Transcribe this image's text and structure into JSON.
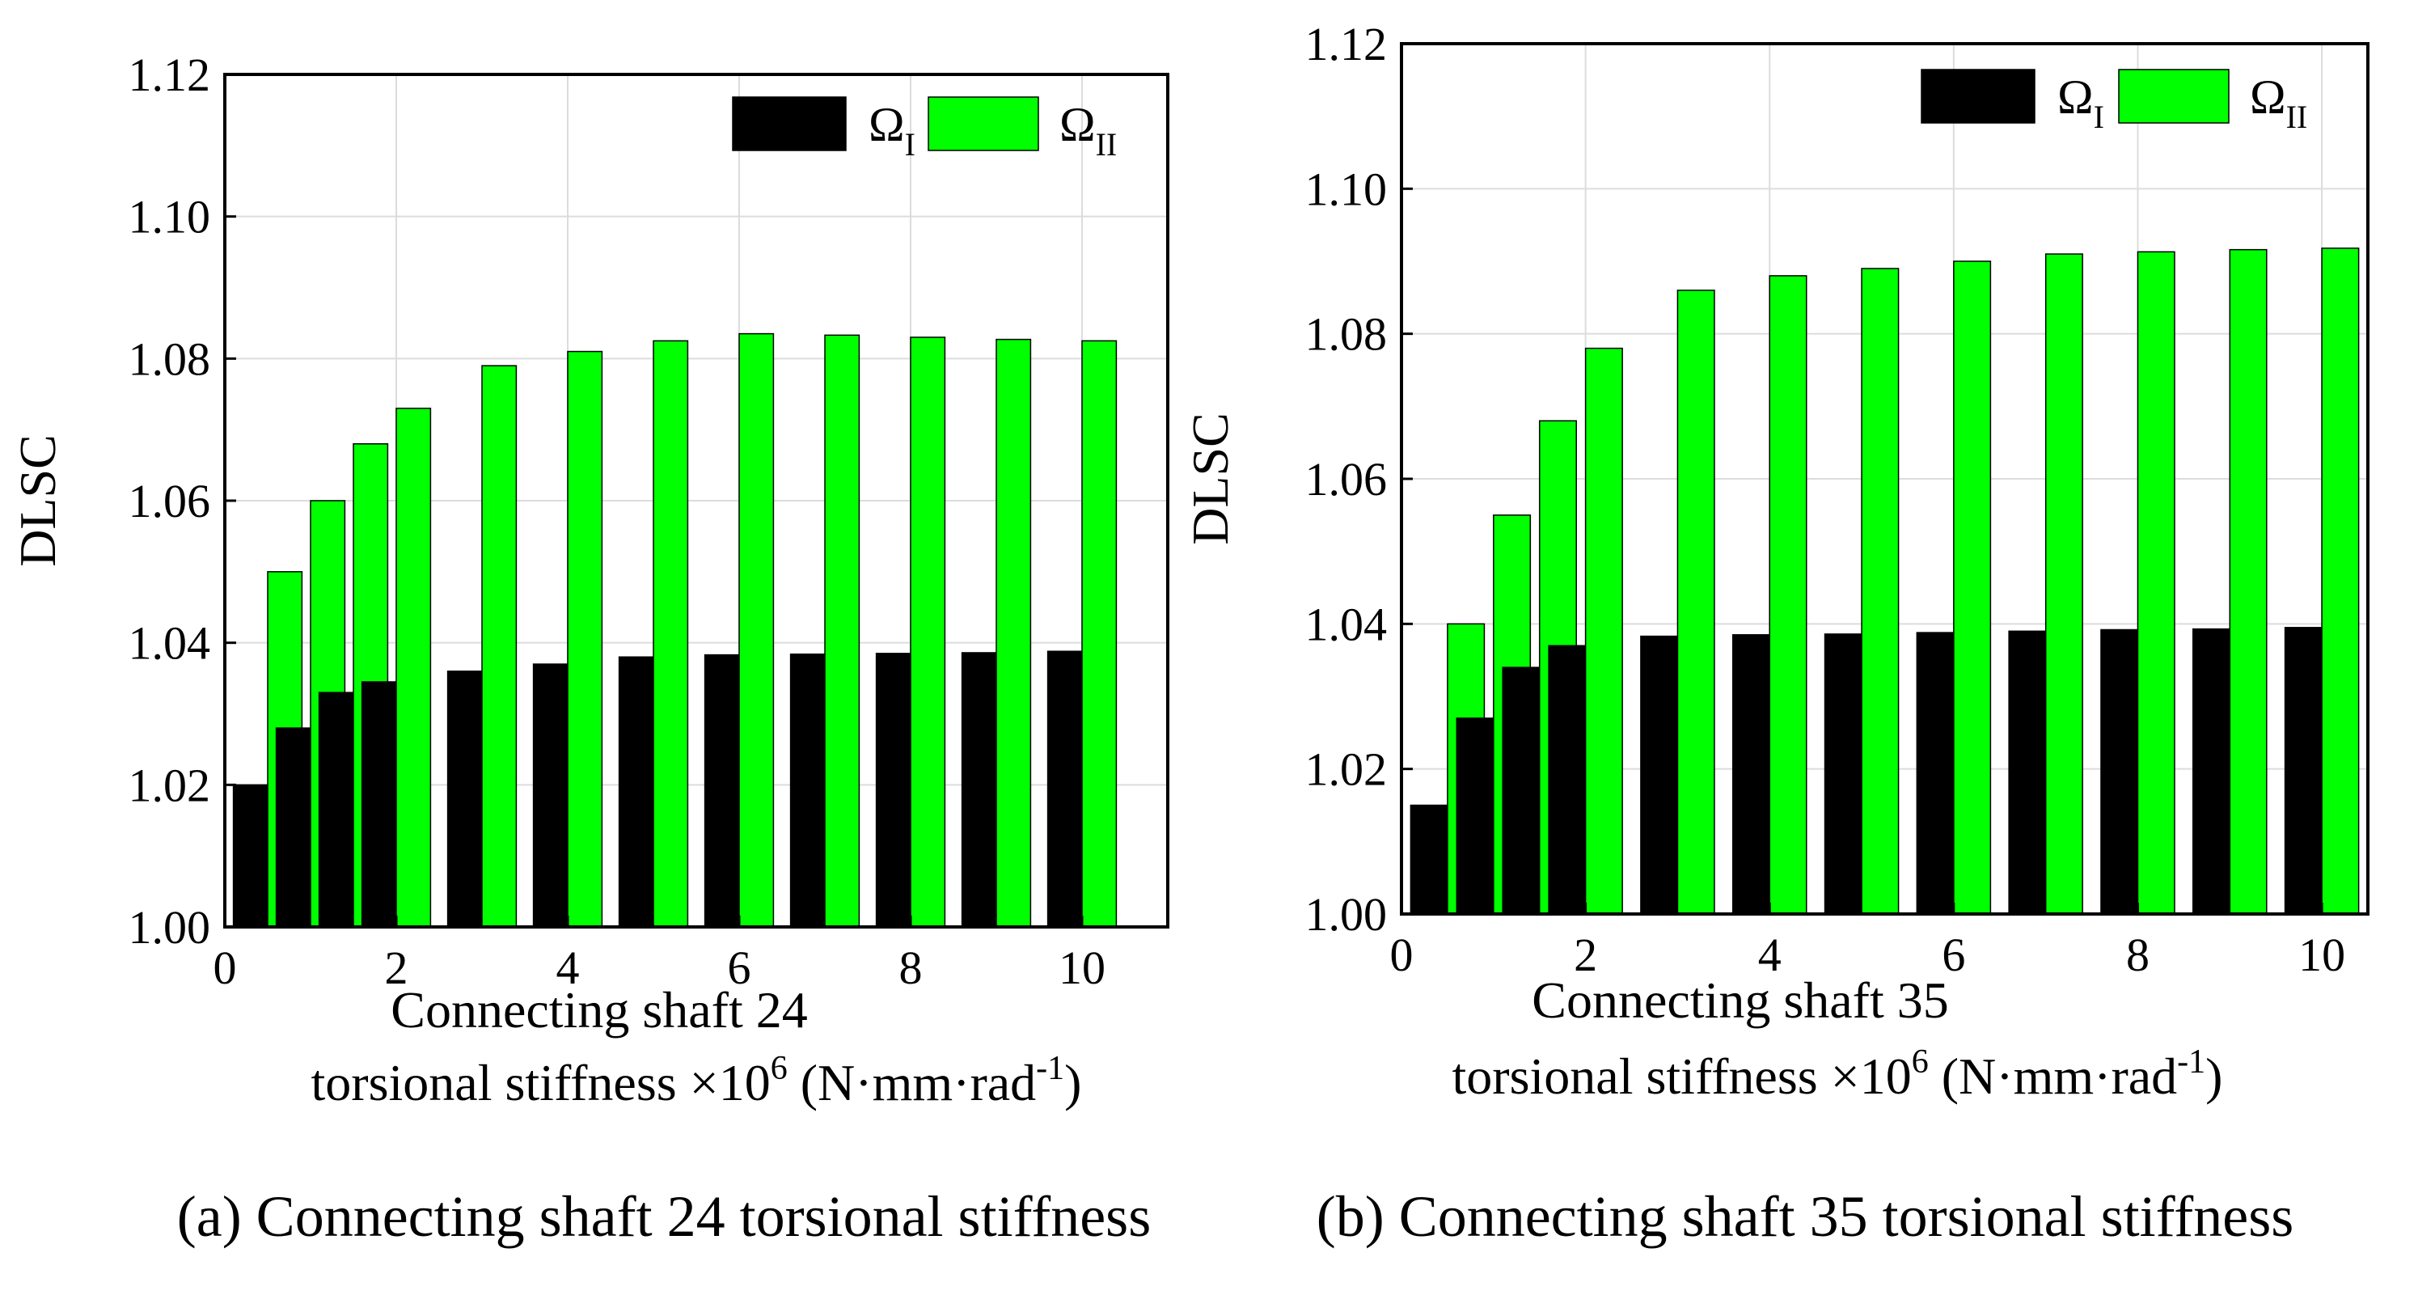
{
  "chart_data": [
    {
      "type": "bar",
      "ylabel": "DLSC",
      "xlabel_line1": "Connecting shaft 24",
      "xlabel_line2_prefix": "torsional stiffness ×10",
      "xlabel_line2_exp": "6",
      "xlabel_line2_mid": " (N·mm·rad",
      "xlabel_line2_exp2": "-1",
      "xlabel_line2_suffix": ")",
      "caption": "(a) Connecting shaft 24 torsional stiffness",
      "xlim": [
        0,
        11
      ],
      "ylim": [
        1.0,
        1.12
      ],
      "xticks": [
        "0",
        "2",
        "4",
        "6",
        "8",
        "10"
      ],
      "yticks": [
        "1.00",
        "1.02",
        "1.04",
        "1.06",
        "1.08",
        "1.10",
        "1.12"
      ],
      "x": [
        0.5,
        1.0,
        1.5,
        2.0,
        3.0,
        4.0,
        5.0,
        6.0,
        7.0,
        8.0,
        9.0,
        10.0
      ],
      "series": [
        {
          "name": "Ω",
          "sub": "I",
          "color": "#000000",
          "values": [
            1.02,
            1.028,
            1.033,
            1.0345,
            1.036,
            1.037,
            1.038,
            1.0383,
            1.0384,
            1.0385,
            1.0386,
            1.0388
          ]
        },
        {
          "name": "Ω",
          "sub": "II",
          "color": "#00ff00",
          "values": [
            1.05,
            1.06,
            1.068,
            1.073,
            1.079,
            1.081,
            1.0825,
            1.0835,
            1.0833,
            1.083,
            1.0827,
            1.0825
          ]
        }
      ]
    },
    {
      "type": "bar",
      "ylabel": "DLSC",
      "xlabel_line1": "Connecting shaft 35",
      "xlabel_line2_prefix": "torsional stiffness ×10",
      "xlabel_line2_exp": "6",
      "xlabel_line2_mid": " (N·mm·rad",
      "xlabel_line2_exp2": "-1",
      "xlabel_line2_suffix": ")",
      "caption": "(b) Connecting shaft 35 torsional stiffness",
      "xlim": [
        0,
        10.5
      ],
      "ylim": [
        1.0,
        1.12
      ],
      "xticks": [
        "0",
        "2",
        "4",
        "6",
        "8",
        "10"
      ],
      "yticks": [
        "1.00",
        "1.02",
        "1.04",
        "1.06",
        "1.08",
        "1.10",
        "1.12"
      ],
      "x": [
        0.5,
        1.0,
        1.5,
        2.0,
        3.0,
        4.0,
        5.0,
        6.0,
        7.0,
        8.0,
        9.0,
        10.0
      ],
      "series": [
        {
          "name": "Ω",
          "sub": "I",
          "color": "#000000",
          "values": [
            1.015,
            1.027,
            1.034,
            1.037,
            1.0383,
            1.0385,
            1.0386,
            1.0388,
            1.039,
            1.0392,
            1.0393,
            1.0395
          ]
        },
        {
          "name": "Ω",
          "sub": "II",
          "color": "#00ff00",
          "values": [
            1.04,
            1.055,
            1.068,
            1.078,
            1.086,
            1.088,
            1.089,
            1.09,
            1.091,
            1.0913,
            1.0916,
            1.0918
          ]
        }
      ]
    }
  ]
}
